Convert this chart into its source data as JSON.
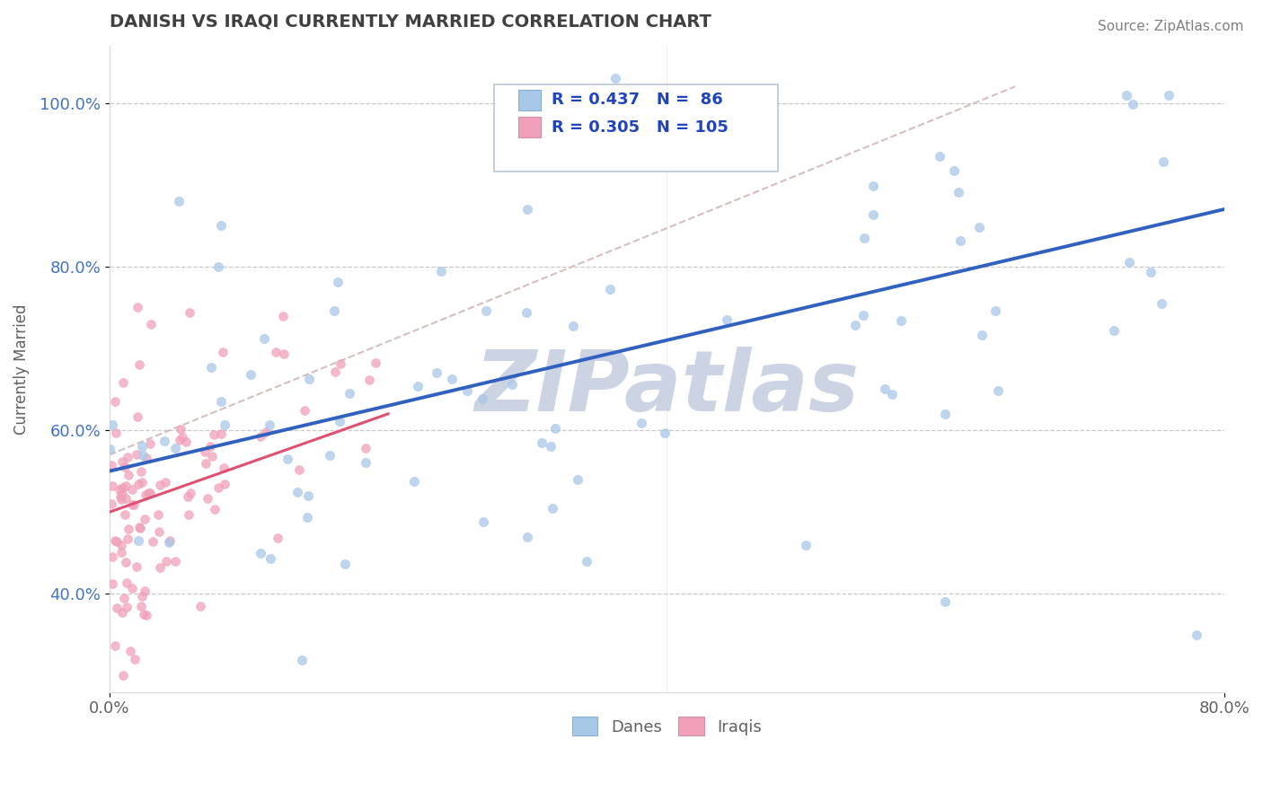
{
  "title": "DANISH VS IRAQI CURRENTLY MARRIED CORRELATION CHART",
  "source_text": "Source: ZipAtlas.com",
  "ylabel": "Currently Married",
  "xlim": [
    0.0,
    0.8
  ],
  "ylim": [
    0.28,
    1.07
  ],
  "x_ticks": [
    0.0,
    0.8
  ],
  "x_tick_labels": [
    "0.0%",
    "80.0%"
  ],
  "y_ticks": [
    0.4,
    0.6,
    0.8,
    1.0
  ],
  "y_tick_labels": [
    "40.0%",
    "60.0%",
    "80.0%",
    "100.0%"
  ],
  "danes_R": 0.437,
  "danes_N": 86,
  "iraqis_R": 0.305,
  "iraqis_N": 105,
  "danes_color": "#a8c8e8",
  "iraqis_color": "#f0a0b8",
  "danes_line_color": "#3060c0",
  "iraqis_line_color": "#e05070",
  "legend_label_danes": "Danes",
  "legend_label_iraqis": "Iraqis",
  "danes_seed": 12,
  "iraqis_seed": 77,
  "background_color": "#ffffff",
  "grid_color": "#c8c8c8",
  "title_color": "#404040",
  "source_color": "#808080",
  "watermark_text": "ZIPatlas",
  "watermark_color": "#ccd4e4",
  "watermark_fontsize": 68,
  "diag_line_color": "#d0b8b8",
  "ytick_color": "#4472c4",
  "xtick_color": "#606060"
}
